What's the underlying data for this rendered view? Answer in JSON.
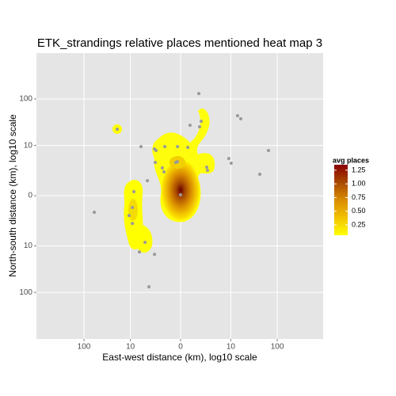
{
  "chart_data": {
    "type": "scatter",
    "title": "ETK_strandings relative places mentioned heat map 3",
    "x_label": "East-west distance (km), log10 scale",
    "y_label": "North-south distance (km), log10 scale",
    "scale": "symlog10",
    "grid": true,
    "xlim": [
      -976,
      903
    ],
    "ylim": [
      -933,
      903
    ],
    "xticks": [
      {
        "value": -100,
        "label": "100"
      },
      {
        "value": -10,
        "label": "10"
      },
      0,
      10,
      100
    ],
    "yticks": [
      {
        "value": -100,
        "label": "100"
      },
      {
        "value": -10,
        "label": "10"
      },
      0,
      10,
      100
    ],
    "point_color": "#999999",
    "x": [
      1.39,
      -19.6,
      0.57,
      1.67,
      1.48,
      14.2,
      16.7,
      -5.62,
      0.41,
      -2.48,
      -1.13,
      -0.16,
      -2.23,
      65.5,
      9.0,
      10.2,
      2.48,
      2.62,
      -0.26,
      -2.35,
      -1.39,
      -1.21,
      42.9,
      -3.89,
      0,
      -8.3,
      -60.7,
      -9.0,
      -10.7,
      -9.0,
      -4.48,
      -6.14,
      -2.48,
      -3.54,
      -0.16
    ],
    "values": [
      130,
      22.9,
      27.9,
      33.9,
      25.8,
      44.5,
      38.2,
      9.4,
      9.0,
      8.3,
      9.4,
      9.4,
      7.63,
      7.63,
      4.91,
      3.71,
      2.9,
      2.35,
      3.89,
      3.89,
      2.76,
      2.11,
      1.78,
      1.05,
      0.04,
      0.21,
      -1.21,
      -0.76,
      -1.58,
      -2.76,
      -8.3,
      -13.7,
      -15.4,
      -76.3,
      4.08
    ],
    "legend": {
      "title": "avg places",
      "lim": [
        0.06,
        1.35
      ],
      "colors": [
        "#ffff00",
        "#f2c200",
        "#d98c00",
        "#a84a00",
        "#8b0000"
      ],
      "ticks": [
        {
          "value": 1.25,
          "label": "1.25"
        },
        {
          "value": 1,
          "label": "1.00"
        },
        {
          "value": 0.75,
          "label": "0.75"
        },
        {
          "value": 0.5,
          "label": "0.50"
        },
        {
          "value": 0.25,
          "label": "0.25"
        }
      ]
    }
  }
}
